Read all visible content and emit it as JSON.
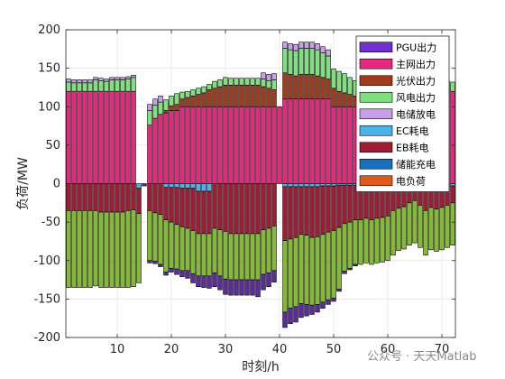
{
  "chart_data": {
    "type": "bar",
    "stacked": true,
    "xlabel": "时刻/h",
    "ylabel": "负荷/MW",
    "xlim": [
      0.5,
      72.5
    ],
    "ylim": [
      -200,
      200
    ],
    "xticks": [
      10,
      20,
      30,
      40,
      50,
      60,
      70
    ],
    "yticks": [
      -200,
      -150,
      -100,
      -50,
      0,
      50,
      100,
      150,
      200
    ],
    "grid": true,
    "legend_position": "top-right",
    "x": [
      1,
      2,
      3,
      4,
      5,
      6,
      7,
      8,
      9,
      10,
      11,
      12,
      13,
      14,
      15,
      16,
      17,
      18,
      19,
      20,
      21,
      22,
      23,
      24,
      25,
      26,
      27,
      28,
      29,
      30,
      31,
      32,
      33,
      34,
      35,
      36,
      37,
      38,
      39,
      40,
      41,
      42,
      43,
      44,
      45,
      46,
      47,
      48,
      49,
      50,
      51,
      52,
      53,
      54,
      55,
      56,
      57,
      58,
      59,
      60,
      61,
      62,
      63,
      64,
      65,
      66,
      67,
      68,
      69,
      70,
      71,
      72
    ],
    "series": [
      {
        "name": "PGU出力",
        "color": "#7030d0",
        "values": [
          0,
          0,
          0,
          0,
          0,
          0,
          0,
          0,
          0,
          0,
          0,
          0,
          0,
          0,
          0,
          0,
          0,
          0,
          0,
          0,
          0,
          0,
          0,
          0,
          0,
          0,
          0,
          0,
          0,
          0,
          0,
          0,
          0,
          0,
          0,
          0,
          0,
          0,
          0,
          0,
          0,
          0,
          0,
          0,
          0,
          0,
          0,
          0,
          0,
          0,
          0,
          0,
          0,
          0,
          0,
          0,
          0,
          0,
          0,
          0,
          0,
          0,
          0,
          0,
          0,
          0,
          0,
          0,
          0,
          0,
          0,
          0
        ]
      },
      {
        "name": "主网出力",
        "color": "#e8287c",
        "values": [
          120,
          120,
          120,
          120,
          120,
          120,
          120,
          120,
          120,
          120,
          120,
          120,
          120,
          0,
          0,
          76,
          85,
          90,
          92,
          95,
          95,
          100,
          100,
          100,
          100,
          100,
          100,
          100,
          100,
          100,
          100,
          100,
          100,
          100,
          100,
          100,
          100,
          100,
          100,
          100,
          110,
          110,
          110,
          110,
          110,
          110,
          110,
          110,
          110,
          100,
          100,
          100,
          100,
          100,
          100,
          100,
          100,
          100,
          120,
          120,
          120,
          120,
          120,
          120,
          120,
          120,
          120,
          120,
          120,
          120,
          120,
          120
        ]
      },
      {
        "name": "光伏出力",
        "color": "#a03c1c",
        "values": [
          0,
          0,
          0,
          0,
          0,
          0,
          0,
          0,
          0,
          0,
          0,
          0,
          0,
          0,
          0,
          0,
          0,
          0,
          3,
          6,
          8,
          10,
          12,
          14,
          16,
          18,
          22,
          24,
          26,
          28,
          28,
          28,
          28,
          28,
          28,
          28,
          26,
          24,
          22,
          0,
          34,
          32,
          30,
          32,
          32,
          32,
          30,
          28,
          26,
          24,
          20,
          18,
          16,
          14,
          10,
          8,
          6,
          2,
          0,
          0,
          0,
          0,
          0,
          0,
          0,
          0,
          0,
          0,
          0,
          0,
          0,
          0
        ]
      },
      {
        "name": "风电出力",
        "color": "#80e080",
        "values": [
          12,
          11,
          11,
          11,
          11,
          15,
          14,
          13,
          15,
          15,
          15,
          16,
          18,
          0,
          0,
          19,
          17,
          16,
          14,
          13,
          14,
          9,
          8,
          8,
          8,
          8,
          7,
          9,
          9,
          10,
          9,
          9,
          9,
          9,
          9,
          9,
          10,
          10,
          13,
          0,
          32,
          32,
          33,
          34,
          34,
          34,
          34,
          32,
          30,
          25,
          26,
          25,
          22,
          20,
          20,
          18,
          16,
          14,
          12,
          12,
          12,
          12,
          11,
          11,
          11,
          12,
          13,
          12,
          12,
          12,
          14,
          12
        ]
      },
      {
        "name": "电储放电",
        "color": "#c8a0e8",
        "values": [
          4,
          4,
          4,
          4,
          4,
          3,
          3,
          3,
          3,
          3,
          3,
          3,
          3,
          0,
          0,
          8,
          8,
          8,
          0,
          0,
          0,
          0,
          0,
          0,
          0,
          0,
          0,
          0,
          0,
          0,
          0,
          0,
          0,
          0,
          0,
          0,
          8,
          8,
          8,
          0,
          8,
          8,
          8,
          8,
          8,
          8,
          8,
          8,
          8,
          0,
          0,
          0,
          0,
          0,
          0,
          0,
          0,
          0,
          0,
          0,
          0,
          0,
          0,
          0,
          0,
          0,
          0,
          0,
          0,
          0,
          0,
          0
        ]
      },
      {
        "name": "EC耗电",
        "color": "#4ab4e8",
        "values": [
          0,
          0,
          0,
          0,
          0,
          0,
          0,
          0,
          0,
          0,
          0,
          0,
          0,
          -6,
          0,
          0,
          0,
          0,
          -5,
          -5,
          -5,
          -6,
          -6,
          -6,
          -10,
          -10,
          -10,
          0,
          0,
          0,
          0,
          0,
          0,
          0,
          0,
          0,
          0,
          0,
          0,
          0,
          -4,
          -4,
          -4,
          -4,
          -4,
          -4,
          -4,
          -3,
          -3,
          -3,
          -2,
          -2,
          -2,
          -2,
          -2,
          -2,
          -2,
          -2,
          -2,
          -2,
          0,
          0,
          0,
          0,
          0,
          0,
          -3,
          -3,
          -3,
          -3,
          -3,
          -3
        ]
      },
      {
        "name": "EB耗电",
        "color": "#a01c34",
        "values": [
          -35,
          -35,
          -35,
          -35,
          -35,
          -35,
          -37,
          -37,
          -37,
          -37,
          -37,
          -35,
          -34,
          -33,
          0,
          -35,
          -38,
          -40,
          -42,
          -45,
          -48,
          -50,
          -52,
          -55,
          -55,
          -55,
          -55,
          -58,
          -60,
          -62,
          -65,
          -65,
          -65,
          -65,
          -65,
          -65,
          -60,
          -58,
          -55,
          0,
          -70,
          -68,
          -66,
          -62,
          -63,
          -66,
          -65,
          -63,
          -60,
          -58,
          -55,
          -50,
          -48,
          -45,
          -45,
          -43,
          -45,
          -43,
          -42,
          -40,
          -35,
          -32,
          -30,
          -25,
          -22,
          -28,
          -32,
          -28,
          -30,
          -28,
          -25,
          -22
        ]
      },
      {
        "name": "储能充电",
        "color": "#1b6fba",
        "values": [
          0,
          0,
          0,
          0,
          0,
          0,
          0,
          0,
          0,
          0,
          0,
          0,
          0,
          0,
          0,
          0,
          0,
          0,
          0,
          0,
          0,
          0,
          0,
          0,
          0,
          0,
          0,
          0,
          0,
          0,
          0,
          0,
          0,
          0,
          0,
          0,
          0,
          0,
          0,
          0,
          0,
          0,
          0,
          0,
          0,
          0,
          0,
          0,
          0,
          0,
          0,
          0,
          0,
          0,
          0,
          0,
          0,
          0,
          0,
          0,
          0,
          0,
          0,
          0,
          0,
          0,
          0,
          0,
          0,
          0,
          0,
          0
        ]
      },
      {
        "name": "电负荷",
        "color": "#e25a1c",
        "values": [
          0,
          0,
          0,
          0,
          0,
          0,
          0,
          0,
          0,
          0,
          0,
          0,
          0,
          0,
          0,
          0,
          0,
          0,
          0,
          0,
          0,
          0,
          0,
          0,
          0,
          0,
          0,
          0,
          0,
          0,
          0,
          0,
          0,
          0,
          0,
          0,
          0,
          0,
          0,
          0,
          0,
          0,
          0,
          0,
          0,
          0,
          0,
          0,
          0,
          0,
          0,
          0,
          0,
          0,
          0,
          0,
          0,
          0,
          0,
          0,
          0,
          0,
          0,
          0,
          0,
          0,
          0,
          0,
          0,
          0,
          0,
          0
        ]
      },
      {
        "name": "",
        "color": "#82bb32",
        "values": [
          -100,
          -100,
          -100,
          -100,
          -100,
          -98,
          -98,
          -98,
          -98,
          -98,
          -98,
          -100,
          -100,
          -90,
          0,
          -65,
          -63,
          -65,
          -68,
          -60,
          -58,
          -57,
          -55,
          -56,
          -55,
          -55,
          -55,
          -58,
          -60,
          -62,
          -60,
          -60,
          -60,
          -60,
          -60,
          -60,
          -58,
          -58,
          -58,
          0,
          -93,
          -90,
          -90,
          -90,
          -90,
          -88,
          -88,
          -88,
          -88,
          -88,
          -80,
          -62,
          -60,
          -58,
          -58,
          -58,
          -58,
          -58,
          -58,
          -58,
          -58,
          -55,
          -55,
          -55,
          -55,
          -55,
          -58,
          -55,
          -55,
          -55,
          -55,
          -55
        ]
      },
      {
        "name": "",
        "color": "#5b2d99",
        "values": [
          0,
          0,
          0,
          0,
          0,
          0,
          0,
          0,
          0,
          0,
          0,
          0,
          0,
          0,
          -3,
          -3,
          -3,
          -3,
          -4,
          -5,
          -7,
          -8,
          -10,
          -12,
          -14,
          -15,
          -16,
          -18,
          -18,
          -20,
          -20,
          -20,
          -20,
          -20,
          -20,
          -22,
          -20,
          -18,
          -15,
          0,
          -20,
          -20,
          -20,
          -18,
          -15,
          -12,
          -10,
          -8,
          -6,
          -4,
          -3,
          -3,
          -2,
          -2,
          0,
          0,
          0,
          0,
          0,
          0,
          0,
          0,
          0,
          0,
          0,
          0,
          0,
          0,
          0,
          0,
          0,
          0
        ]
      }
    ]
  },
  "watermark": "公众号 · 天天Matlab"
}
